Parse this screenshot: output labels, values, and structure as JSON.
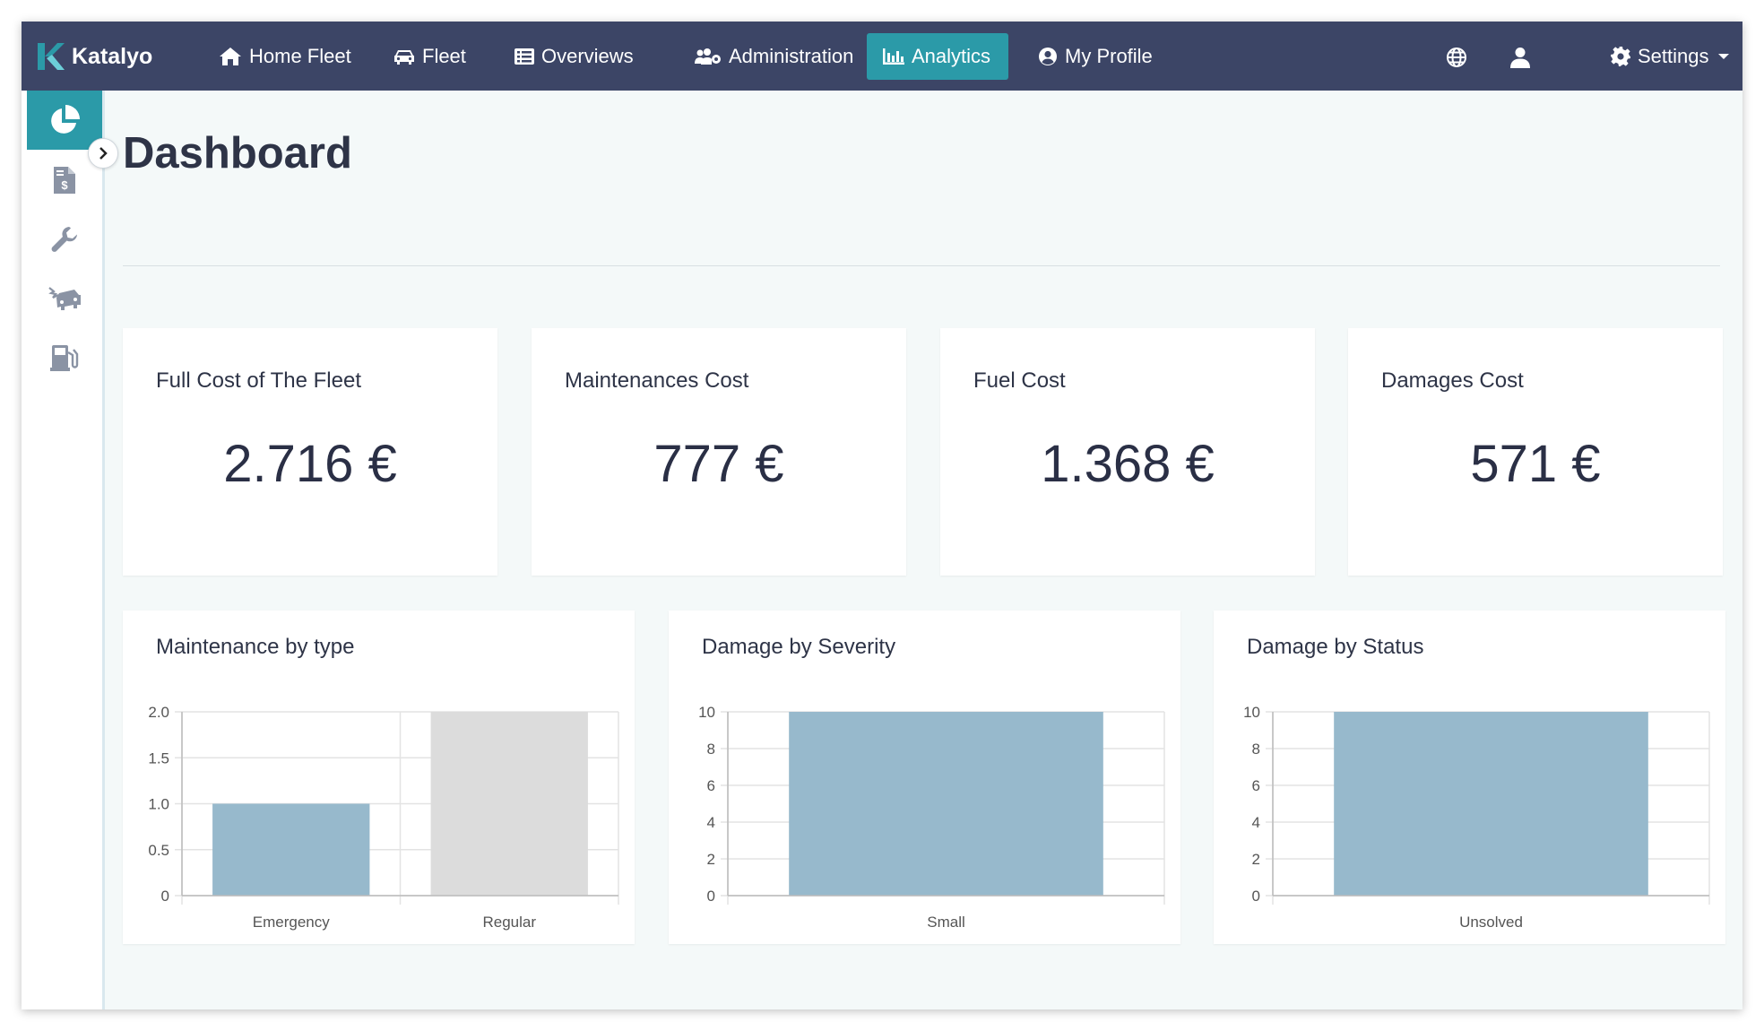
{
  "brand": {
    "name": "Katalyo"
  },
  "nav": [
    {
      "label": "Home Fleet",
      "icon": "home-icon"
    },
    {
      "label": "Fleet",
      "icon": "car-icon"
    },
    {
      "label": "Overviews",
      "icon": "list-icon"
    },
    {
      "label": "Administration",
      "icon": "users-cog-icon"
    },
    {
      "label": "Analytics",
      "icon": "chart-bar-icon",
      "active": true
    },
    {
      "label": "My Profile",
      "icon": "user-circle-icon"
    }
  ],
  "nav_right": {
    "language_icon": "globe-icon",
    "user_icon": "user-icon",
    "settings_label": "Settings",
    "settings_icon": "gear-icon"
  },
  "sidebar": {
    "items": [
      {
        "icon": "pie-chart-icon",
        "active": true
      },
      {
        "icon": "invoice-icon"
      },
      {
        "icon": "wrench-icon"
      },
      {
        "icon": "car-crash-icon"
      },
      {
        "icon": "gas-pump-icon"
      }
    ],
    "toggle_icon": "chevron-right-icon"
  },
  "page": {
    "title": "Dashboard"
  },
  "cards": [
    {
      "title": "Full Cost of The Fleet",
      "value": "2.716 €"
    },
    {
      "title": "Maintenances Cost",
      "value": "777 €"
    },
    {
      "title": "Fuel Cost",
      "value": "1.368 €"
    },
    {
      "title": "Damages Cost",
      "value": "571 €"
    }
  ],
  "colors": {
    "nav_bg": "#3c4566",
    "accent": "#2b9aa8",
    "bar_blue": "#97b9cc",
    "bar_grey": "#dcdcdc"
  },
  "chart_data": [
    {
      "type": "bar",
      "title": "Maintenance by type",
      "categories": [
        "Emergency",
        "Regular"
      ],
      "values": [
        1,
        2
      ],
      "bar_colors": [
        "#97b9cc",
        "#dcdcdc"
      ],
      "ylim": [
        0,
        2
      ],
      "yticks": [
        "0",
        "0.5",
        "1.0",
        "1.5",
        "2.0"
      ],
      "ytick_values": [
        0,
        0.5,
        1,
        1.5,
        2
      ],
      "grid": true
    },
    {
      "type": "bar",
      "title": "Damage by Severity",
      "categories": [
        "Small"
      ],
      "values": [
        10
      ],
      "bar_colors": [
        "#97b9cc"
      ],
      "ylim": [
        0,
        10
      ],
      "yticks": [
        "0",
        "2",
        "4",
        "6",
        "8",
        "10"
      ],
      "ytick_values": [
        0,
        2,
        4,
        6,
        8,
        10
      ],
      "grid": true
    },
    {
      "type": "bar",
      "title": "Damage by Status",
      "categories": [
        "Unsolved"
      ],
      "values": [
        10
      ],
      "bar_colors": [
        "#97b9cc"
      ],
      "ylim": [
        0,
        10
      ],
      "yticks": [
        "0",
        "2",
        "4",
        "6",
        "8",
        "10"
      ],
      "ytick_values": [
        0,
        2,
        4,
        6,
        8,
        10
      ],
      "grid": true
    }
  ]
}
